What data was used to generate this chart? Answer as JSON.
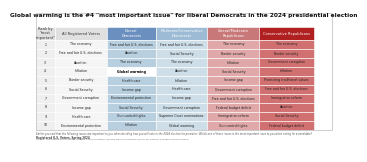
{
  "title": "Global warming is the #4 \"most important issue\" for liberal Democrats in the 2024 presidential election",
  "columns": [
    "Rank by\n\"most\nimportant\"",
    "All Registered Voters",
    "Liberal\nDemocrats",
    "Moderate/Conservative\nDemocrats",
    "Liberal/Moderate\nRepublicans",
    "Conservative Republicans"
  ],
  "rows": [
    [
      "1",
      "The economy",
      "Free and fair U.S. elections",
      "Free and fair U.S. elections",
      "The economy",
      "The economy"
    ],
    [
      "2",
      "Free and fair U.S. elections",
      "Abortion",
      "Social Security",
      "Border security",
      "Border security"
    ],
    [
      "3",
      "Abortion",
      "The economy",
      "The economy",
      "Inflation",
      "Government corruption"
    ],
    [
      "4",
      "Inflation",
      "Global warming",
      "Abortion",
      "Social Security",
      "Inflation"
    ],
    [
      "5",
      "Border security",
      "Health care",
      "Inflation",
      "Income gap",
      "Protecting traditional values"
    ],
    [
      "6",
      "Social Security",
      "Income gap",
      "Health care",
      "Government corruption",
      "Free and fair U.S. elections"
    ],
    [
      "7",
      "Government corruption",
      "Environmental protection",
      "Income gap",
      "Free and fair U.S. elections",
      "Immigration reform"
    ],
    [
      "8",
      "Income gap",
      "Social Security",
      "Government corruption",
      "Federal budget deficit",
      "Abortion"
    ],
    [
      "9",
      "Health care",
      "Gun control/rights",
      "Supreme Court nominations",
      "Immigration reform",
      "Social Security"
    ],
    [
      "10",
      "Environmental protection",
      "Inflation",
      "Global warming",
      "Gun control/rights",
      "Federal budget deficit"
    ]
  ],
  "highlight_cell": [
    3,
    2
  ],
  "header_bg": [
    "#e0e0e0",
    "#e0e0e0",
    "#6b8fbf",
    "#9dbbd4",
    "#c87878",
    "#b02020"
  ],
  "header_fg": [
    "#333333",
    "#333333",
    "#ffffff",
    "#ffffff",
    "#ffffff",
    "#ffffff"
  ],
  "col_row_bg": [
    "#efefef",
    "#f5f5f5",
    "#b8cfe0",
    "#cddee8",
    "#e0a8a8",
    "#d07070"
  ],
  "highlight_bg": "#ffffff",
  "highlight_fg": "#000000",
  "footer1": "Earlier you said that the following issues are important to you when deciding how you will vote in the 2024 election for president. Which one of these issues is the most important issue to you when voting for a candidate?",
  "footer2": "Registered U.S. Voters, Spring 2024",
  "footer3": "Source: Yale Program on Climate Change Communication, George Mason University Center for Climate Change Communication"
}
